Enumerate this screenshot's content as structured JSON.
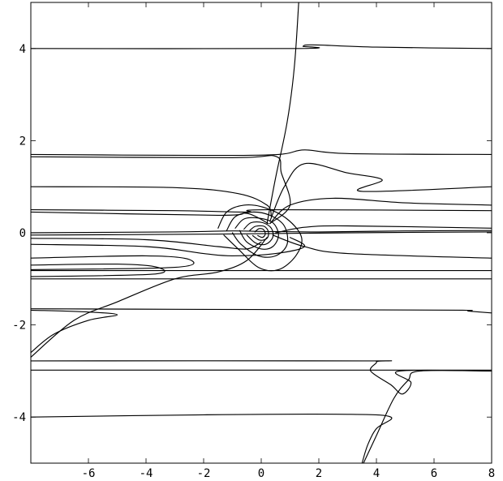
{
  "chart_data": {
    "type": "line",
    "title": "",
    "xlabel": "",
    "ylabel": "",
    "xlim": [
      -8,
      8
    ],
    "ylim": [
      -5,
      5
    ],
    "grid": false,
    "x_ticks": [
      {
        "value": -6,
        "label": "-6"
      },
      {
        "value": -4,
        "label": "-4"
      },
      {
        "value": -2,
        "label": "-2"
      },
      {
        "value": 0,
        "label": "0"
      },
      {
        "value": 2,
        "label": "2"
      },
      {
        "value": 4,
        "label": "4"
      },
      {
        "value": 6,
        "label": "6"
      },
      {
        "value": 8,
        "label": "8"
      }
    ],
    "y_ticks": [
      {
        "value": -4,
        "label": "-4"
      },
      {
        "value": -2,
        "label": "-2"
      },
      {
        "value": 0,
        "label": "0"
      },
      {
        "value": 2,
        "label": "2"
      },
      {
        "value": 4,
        "label": "4"
      }
    ],
    "series": [
      {
        "points": [
          [
            -8,
            4.0
          ],
          [
            1.3,
            4.0
          ],
          [
            1.45,
            4.05
          ],
          [
            1.8,
            4.08
          ],
          [
            4,
            4.03
          ],
          [
            8,
            4.0
          ]
        ]
      },
      {
        "points": [
          [
            0.2,
            0.2
          ],
          [
            0.5,
            1.2
          ],
          [
            0.9,
            2.4
          ],
          [
            1.15,
            3.6
          ],
          [
            1.3,
            5.0
          ]
        ]
      },
      {
        "points": [
          [
            -8,
            1.7
          ],
          [
            -2,
            1.68
          ],
          [
            0.6,
            1.7
          ],
          [
            1.5,
            1.8
          ],
          [
            3,
            1.72
          ],
          [
            8,
            1.7
          ]
        ]
      },
      {
        "points": [
          [
            -8,
            1.65
          ],
          [
            -1,
            1.63
          ],
          [
            0.5,
            1.66
          ],
          [
            0.7,
            1.3
          ],
          [
            1.0,
            0.6
          ],
          [
            0.3,
            0.2
          ]
        ]
      },
      {
        "points": [
          [
            0.3,
            0.25
          ],
          [
            0.8,
            1.0
          ],
          [
            1.5,
            1.5
          ],
          [
            3,
            1.3
          ],
          [
            4.2,
            1.15
          ],
          [
            3.5,
            0.9
          ],
          [
            8,
            1.0
          ]
        ]
      },
      {
        "points": [
          [
            -8,
            1.0
          ],
          [
            -3,
            0.98
          ],
          [
            -0.8,
            0.85
          ],
          [
            0.2,
            0.6
          ],
          [
            0.35,
            0.35
          ]
        ]
      },
      {
        "points": [
          [
            -8,
            0.5
          ],
          [
            -3,
            0.48
          ],
          [
            -0.5,
            0.45
          ],
          [
            0.2,
            0.5
          ],
          [
            8,
            0.48
          ]
        ]
      },
      {
        "points": [
          [
            -8,
            0.45
          ],
          [
            -1.5,
            0.38
          ],
          [
            -0.5,
            0.42
          ],
          [
            0.25,
            0.2
          ]
        ]
      },
      {
        "points": [
          [
            0.3,
            0.2
          ],
          [
            1,
            0.6
          ],
          [
            2.5,
            0.75
          ],
          [
            5,
            0.65
          ],
          [
            8,
            0.6
          ]
        ]
      },
      {
        "points": [
          [
            -8,
            0.0
          ],
          [
            -3,
            0.02
          ],
          [
            -1,
            0.04
          ],
          [
            0,
            0.03
          ],
          [
            2,
            0.02
          ],
          [
            5,
            0.04
          ],
          [
            8,
            0.05
          ]
        ]
      },
      {
        "points": [
          [
            -8,
            -0.05
          ],
          [
            -2,
            -0.03
          ],
          [
            0,
            -0.02
          ],
          [
            3,
            0.0
          ],
          [
            8,
            0.02
          ]
        ]
      },
      {
        "points": [
          [
            0.5,
            0.0
          ],
          [
            1.5,
            0.12
          ],
          [
            3,
            0.15
          ],
          [
            8,
            0.1
          ]
        ]
      },
      {
        "points": [
          [
            0.4,
            -0.05
          ],
          [
            1.5,
            -0.3
          ],
          [
            3,
            -0.45
          ],
          [
            8,
            -0.55
          ]
        ]
      },
      {
        "points": [
          [
            -8,
            -0.12
          ],
          [
            -4,
            -0.15
          ],
          [
            -1.5,
            -0.3
          ],
          [
            -0.5,
            -0.35
          ],
          [
            0,
            -0.2
          ]
        ]
      },
      {
        "points": [
          [
            -8,
            -0.25
          ],
          [
            -4,
            -0.3
          ],
          [
            -2,
            -0.45
          ],
          [
            -1,
            -0.5
          ],
          [
            0.5,
            -0.45
          ],
          [
            1.5,
            -0.3
          ],
          [
            1.0,
            -0.1
          ]
        ]
      },
      {
        "points": [
          [
            -8,
            -0.55
          ],
          [
            -4,
            -0.5
          ],
          [
            -2.5,
            -0.58
          ],
          [
            -3,
            -0.75
          ],
          [
            -8,
            -0.8
          ]
        ]
      },
      {
        "points": [
          [
            -8,
            -0.7
          ],
          [
            -5,
            -0.68
          ],
          [
            -3.6,
            -0.75
          ],
          [
            -3.8,
            -0.9
          ],
          [
            -8,
            -0.95
          ]
        ]
      },
      {
        "points": [
          [
            -8,
            -0.82
          ],
          [
            8,
            -0.82
          ]
        ]
      },
      {
        "points": [
          [
            -8,
            -1.0
          ],
          [
            8,
            -1.0
          ]
        ]
      },
      {
        "points": [
          [
            0.2,
            -0.1
          ],
          [
            -0.5,
            -0.6
          ],
          [
            -1.5,
            -0.85
          ],
          [
            -3,
            -1.0
          ],
          [
            -5,
            -1.5
          ],
          [
            -6.5,
            -1.9
          ],
          [
            -8,
            -2.7
          ]
        ]
      },
      {
        "points": [
          [
            -8,
            -1.65
          ],
          [
            -3,
            -1.66
          ],
          [
            3,
            -1.67
          ],
          [
            7.0,
            -1.68
          ],
          [
            7.2,
            -1.7
          ],
          [
            8,
            -1.74
          ]
        ]
      },
      {
        "points": [
          [
            -8,
            -1.68
          ],
          [
            -6,
            -1.72
          ],
          [
            -5,
            -1.78
          ],
          [
            -6,
            -1.9
          ],
          [
            -7.2,
            -2.2
          ],
          [
            -8,
            -2.6
          ]
        ]
      },
      {
        "points": [
          [
            -8,
            -2.78
          ],
          [
            3.5,
            -2.78
          ],
          [
            4,
            -2.8
          ],
          [
            3.8,
            -3.0
          ],
          [
            4.5,
            -3.3
          ],
          [
            4.9,
            -3.5
          ],
          [
            5.2,
            -3.25
          ],
          [
            4.8,
            -3.0
          ],
          [
            8,
            -3.0
          ]
        ]
      },
      {
        "points": [
          [
            -8,
            -2.98
          ],
          [
            8,
            -2.98
          ]
        ]
      },
      {
        "points": [
          [
            -8,
            -4.0
          ],
          [
            -2,
            -3.95
          ],
          [
            3,
            -3.94
          ],
          [
            4.5,
            -4.0
          ],
          [
            4.0,
            -4.25
          ],
          [
            3.7,
            -4.6
          ],
          [
            3.5,
            -5.0
          ]
        ]
      },
      {
        "points": [
          [
            3.55,
            -5.0
          ],
          [
            4.0,
            -4.4
          ],
          [
            4.6,
            -3.6
          ],
          [
            5.1,
            -3.2
          ],
          [
            5.5,
            -3.0
          ],
          [
            8,
            -3.0
          ]
        ]
      },
      {
        "points": [
          [
            -1.5,
            0.1
          ],
          [
            -1.2,
            0.45
          ],
          [
            -0.6,
            0.6
          ],
          [
            0.1,
            0.55
          ],
          [
            0.9,
            0.3
          ],
          [
            1.4,
            -0.1
          ],
          [
            1.2,
            -0.5
          ],
          [
            0.6,
            -0.8
          ],
          [
            -0.1,
            -0.75
          ],
          [
            -0.8,
            -0.35
          ],
          [
            -1.3,
            -0.05
          ]
        ]
      },
      {
        "points": [
          [
            -1.2,
            0.05
          ],
          [
            -0.9,
            0.35
          ],
          [
            -0.3,
            0.45
          ],
          [
            0.3,
            0.38
          ],
          [
            0.8,
            0.15
          ],
          [
            0.9,
            -0.25
          ],
          [
            0.5,
            -0.5
          ],
          [
            -0.1,
            -0.5
          ],
          [
            -0.7,
            -0.25
          ],
          [
            -1.0,
            0.0
          ]
        ]
      },
      {
        "points": [
          [
            -0.9,
            0.1
          ],
          [
            -0.6,
            0.3
          ],
          [
            -0.1,
            0.32
          ],
          [
            0.4,
            0.22
          ],
          [
            0.6,
            -0.05
          ],
          [
            0.4,
            -0.3
          ],
          [
            0.0,
            -0.35
          ],
          [
            -0.5,
            -0.2
          ],
          [
            -0.75,
            0.05
          ]
        ]
      },
      {
        "points": [
          [
            -0.6,
            0.08
          ],
          [
            -0.35,
            0.22
          ],
          [
            0.05,
            0.22
          ],
          [
            0.35,
            0.1
          ],
          [
            0.4,
            -0.1
          ],
          [
            0.15,
            -0.25
          ],
          [
            -0.2,
            -0.22
          ],
          [
            -0.5,
            -0.05
          ]
        ]
      },
      {
        "points": [
          [
            -0.4,
            0.05
          ],
          [
            -0.2,
            0.14
          ],
          [
            0.1,
            0.14
          ],
          [
            0.25,
            0.02
          ],
          [
            0.2,
            -0.12
          ],
          [
            -0.05,
            -0.16
          ],
          [
            -0.3,
            -0.06
          ]
        ]
      },
      {
        "points": [
          [
            -0.22,
            0.02
          ],
          [
            -0.08,
            0.09
          ],
          [
            0.08,
            0.07
          ],
          [
            0.14,
            -0.03
          ],
          [
            0.04,
            -0.1
          ],
          [
            -0.12,
            -0.06
          ]
        ]
      }
    ]
  }
}
